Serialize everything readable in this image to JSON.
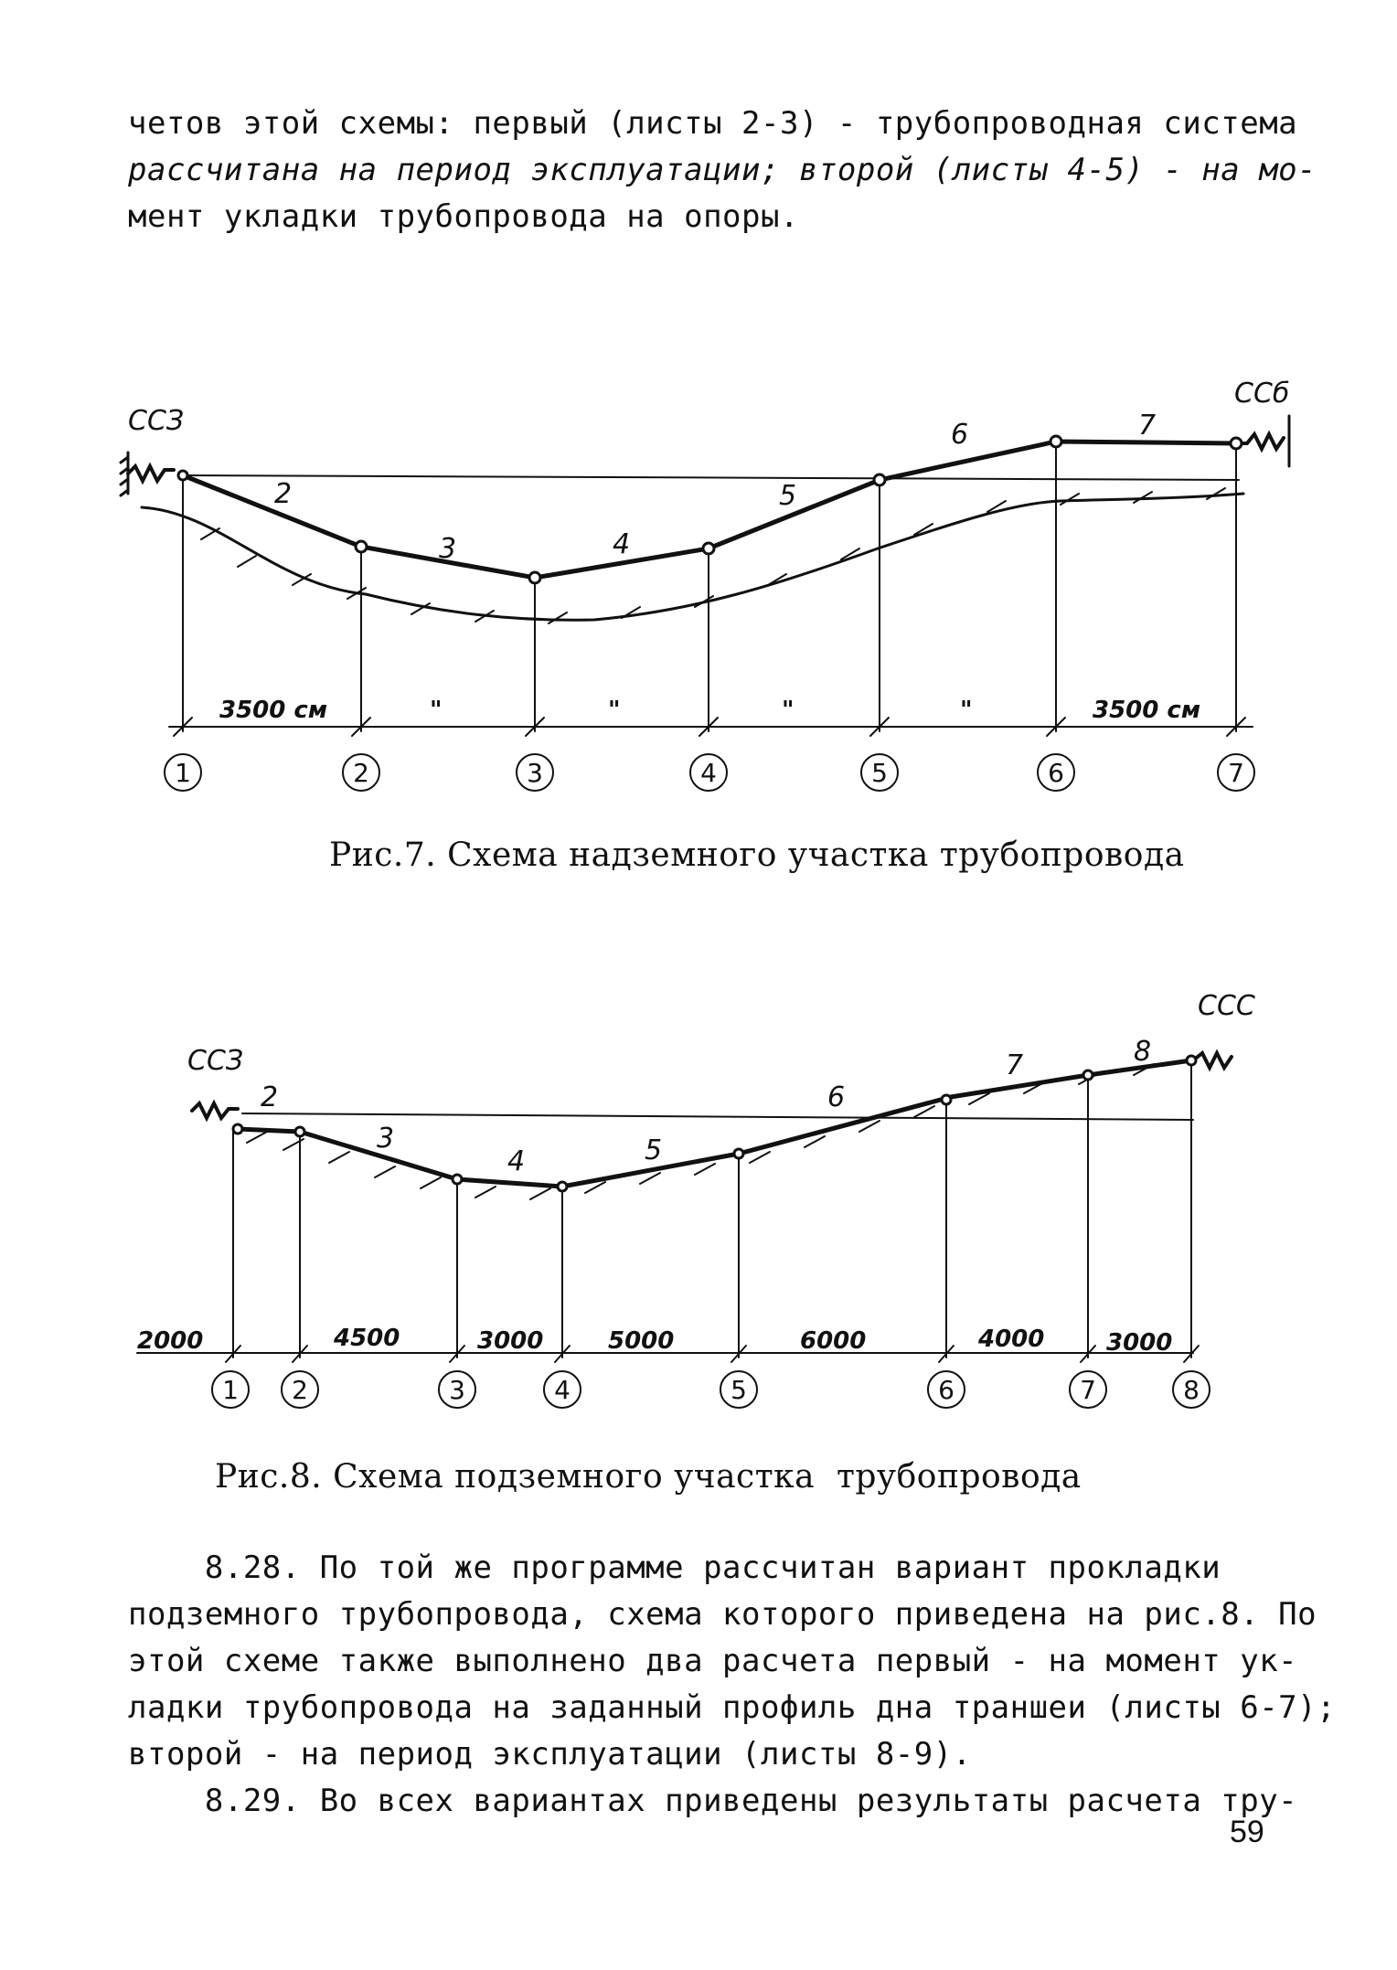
{
  "intro": {
    "line1": "четов этой схемы: первый (листы 2-3) - трубопроводная система",
    "line2": "рассчитана на период эксплуатации; второй (листы 4-5) - на мо-",
    "line3": "мент укладки трубопровода на опоры."
  },
  "figure7": {
    "left_support": "ССЗ",
    "right_support": "ССб",
    "element_labels": [
      "2",
      "3",
      "4",
      "5",
      "6",
      "7"
    ],
    "dimensions": [
      "3500 см",
      "\"",
      "\"",
      "\"",
      "\"",
      "3500 см"
    ],
    "nodes": [
      "1",
      "2",
      "3",
      "4",
      "5",
      "6",
      "7"
    ],
    "caption": "Рис.7. Схема надземного участка трубопровода"
  },
  "figure8": {
    "left_support": "ССЗ",
    "right_support": "ССС",
    "element_labels": [
      "2",
      "3",
      "4",
      "5",
      "6",
      "7",
      "8"
    ],
    "dimensions": [
      "2000",
      "4500",
      "3000",
      "5000",
      "6000",
      "4000",
      "3000"
    ],
    "nodes": [
      "1",
      "2",
      "3",
      "4",
      "5",
      "6",
      "7",
      "8"
    ],
    "caption": "Рис.8. Схема подземного участка  трубопровода"
  },
  "para_828": {
    "line1": "    8.28. По той же программе рассчитан вариант прокладки",
    "line2": "подземного трубопровода, схема которого приведена на рис.8. По",
    "line3": "этой схеме также выполнено два расчета первый - на момент ук-",
    "line4": "ладки трубопровода на заданный профиль дна траншеи (листы 6-7);",
    "line5": "второй - на период эксплуатации (листы 8-9)."
  },
  "para_829": {
    "line1": "    8.29. Во всех вариантах приведены результаты расчета тру-"
  },
  "page_number": "59"
}
